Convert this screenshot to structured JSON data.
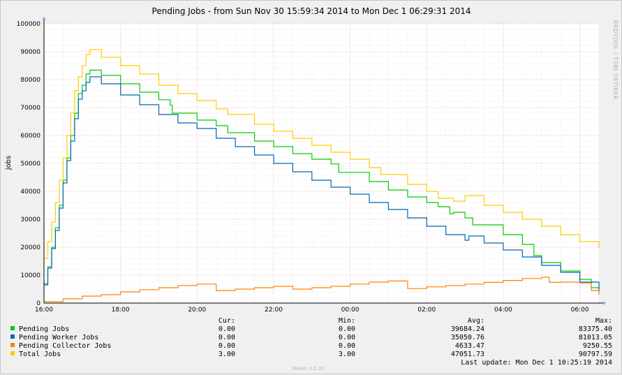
{
  "chart_data": {
    "type": "line",
    "title": "Pending Jobs - from Sun Nov 30 15:59:34 2014 to Mon Dec  1 06:29:31 2014",
    "ylabel": "jobs",
    "side_label": "RRDTOOL / TOBI OETIKER",
    "x_ticks": [
      "16:00",
      "18:00",
      "20:00",
      "22:00",
      "00:00",
      "02:00",
      "04:00",
      "06:00"
    ],
    "y_ticks": [
      "0",
      "10000",
      "20000",
      "30000",
      "40000",
      "50000",
      "60000",
      "70000",
      "80000",
      "90000",
      "100000"
    ],
    "xlim": [
      0,
      14.5
    ],
    "ylim": [
      0,
      100000
    ],
    "grid": true,
    "x_unit_note": "hours after 16:00",
    "series": [
      {
        "name": "Pending Jobs",
        "color": "#00cc00",
        "points": [
          [
            0,
            7000
          ],
          [
            0.1,
            13000
          ],
          [
            0.2,
            20000
          ],
          [
            0.3,
            27000
          ],
          [
            0.4,
            35000
          ],
          [
            0.5,
            44000
          ],
          [
            0.6,
            52000
          ],
          [
            0.7,
            60000
          ],
          [
            0.8,
            68000
          ],
          [
            0.9,
            75000
          ],
          [
            1.0,
            78000
          ],
          [
            1.1,
            82000
          ],
          [
            1.2,
            83400
          ],
          [
            1.5,
            81500
          ],
          [
            2.0,
            78500
          ],
          [
            2.5,
            75500
          ],
          [
            3.0,
            72800
          ],
          [
            3.3,
            70800
          ],
          [
            3.35,
            68000
          ],
          [
            4.0,
            65500
          ],
          [
            4.5,
            63500
          ],
          [
            4.8,
            61000
          ],
          [
            5.5,
            58000
          ],
          [
            6.0,
            56000
          ],
          [
            6.5,
            53500
          ],
          [
            7.0,
            51500
          ],
          [
            7.5,
            49800
          ],
          [
            7.7,
            46800
          ],
          [
            8.5,
            43500
          ],
          [
            9.0,
            40500
          ],
          [
            9.5,
            38000
          ],
          [
            10.0,
            36000
          ],
          [
            10.3,
            34500
          ],
          [
            10.6,
            32000
          ],
          [
            10.7,
            32500
          ],
          [
            11.0,
            30500
          ],
          [
            11.2,
            28000
          ],
          [
            12.0,
            24500
          ],
          [
            12.5,
            21000
          ],
          [
            12.8,
            17000
          ],
          [
            13.0,
            14500
          ],
          [
            13.5,
            11500
          ],
          [
            14.0,
            8500
          ],
          [
            14.3,
            5500
          ],
          [
            14.5,
            4000
          ]
        ]
      },
      {
        "name": "Pending Worker Jobs",
        "color": "#0066b3",
        "points": [
          [
            0,
            6500
          ],
          [
            0.1,
            12500
          ],
          [
            0.2,
            19500
          ],
          [
            0.3,
            26000
          ],
          [
            0.4,
            34000
          ],
          [
            0.5,
            43000
          ],
          [
            0.6,
            51000
          ],
          [
            0.7,
            58000
          ],
          [
            0.8,
            66000
          ],
          [
            0.9,
            73000
          ],
          [
            1.0,
            76000
          ],
          [
            1.1,
            79000
          ],
          [
            1.2,
            81000
          ],
          [
            1.5,
            78500
          ],
          [
            2.0,
            74500
          ],
          [
            2.5,
            71000
          ],
          [
            3.0,
            67500
          ],
          [
            3.5,
            64500
          ],
          [
            4.0,
            62500
          ],
          [
            4.5,
            59000
          ],
          [
            5.0,
            56000
          ],
          [
            5.5,
            53000
          ],
          [
            6.0,
            50000
          ],
          [
            6.5,
            47000
          ],
          [
            7.0,
            44000
          ],
          [
            7.5,
            41500
          ],
          [
            8.0,
            39000
          ],
          [
            8.5,
            36000
          ],
          [
            9.0,
            33500
          ],
          [
            9.5,
            30500
          ],
          [
            10.0,
            27500
          ],
          [
            10.5,
            24500
          ],
          [
            11.0,
            22500
          ],
          [
            11.1,
            24000
          ],
          [
            11.5,
            21500
          ],
          [
            12.0,
            19000
          ],
          [
            12.5,
            16500
          ],
          [
            13.0,
            13500
          ],
          [
            13.5,
            11000
          ],
          [
            14.0,
            7500
          ],
          [
            14.5,
            4000
          ]
        ]
      },
      {
        "name": "Pending Collector Jobs",
        "color": "#ff8000",
        "points": [
          [
            0,
            500
          ],
          [
            0.5,
            1500
          ],
          [
            1.0,
            2500
          ],
          [
            1.5,
            3000
          ],
          [
            2.0,
            4000
          ],
          [
            2.5,
            4800
          ],
          [
            3.0,
            5500
          ],
          [
            3.5,
            6300
          ],
          [
            4.0,
            6800
          ],
          [
            4.5,
            4500
          ],
          [
            5.0,
            5000
          ],
          [
            5.5,
            5500
          ],
          [
            6.0,
            6000
          ],
          [
            6.5,
            5000
          ],
          [
            7.0,
            5500
          ],
          [
            7.5,
            6000
          ],
          [
            8.0,
            6800
          ],
          [
            8.5,
            7500
          ],
          [
            9.0,
            7900
          ],
          [
            9.5,
            5200
          ],
          [
            10.0,
            5800
          ],
          [
            10.5,
            6300
          ],
          [
            11.0,
            6800
          ],
          [
            11.5,
            7400
          ],
          [
            12.0,
            8100
          ],
          [
            12.5,
            8800
          ],
          [
            13.0,
            9250
          ],
          [
            13.2,
            7400
          ],
          [
            13.5,
            7500
          ],
          [
            14.0,
            7200
          ],
          [
            14.3,
            4500
          ],
          [
            14.5,
            3000
          ]
        ]
      },
      {
        "name": "Total Jobs",
        "color": "#ffcc00",
        "points": [
          [
            0,
            16000
          ],
          [
            0.1,
            22000
          ],
          [
            0.2,
            29000
          ],
          [
            0.3,
            36000
          ],
          [
            0.4,
            44000
          ],
          [
            0.5,
            52000
          ],
          [
            0.6,
            60000
          ],
          [
            0.7,
            68000
          ],
          [
            0.8,
            76000
          ],
          [
            0.9,
            81000
          ],
          [
            1.0,
            85000
          ],
          [
            1.1,
            89000
          ],
          [
            1.2,
            90800
          ],
          [
            1.5,
            88000
          ],
          [
            2.0,
            85000
          ],
          [
            2.5,
            82000
          ],
          [
            3.0,
            78000
          ],
          [
            3.5,
            75000
          ],
          [
            4.0,
            72500
          ],
          [
            4.5,
            69500
          ],
          [
            4.8,
            67500
          ],
          [
            5.5,
            64000
          ],
          [
            6.0,
            61500
          ],
          [
            6.5,
            59000
          ],
          [
            7.0,
            56500
          ],
          [
            7.5,
            54000
          ],
          [
            8.0,
            51500
          ],
          [
            8.5,
            48500
          ],
          [
            8.8,
            46000
          ],
          [
            9.5,
            42500
          ],
          [
            10.0,
            40000
          ],
          [
            10.3,
            37500
          ],
          [
            10.7,
            36500
          ],
          [
            11.0,
            38500
          ],
          [
            11.5,
            35000
          ],
          [
            12.0,
            32500
          ],
          [
            12.5,
            30000
          ],
          [
            13.0,
            27500
          ],
          [
            13.5,
            24500
          ],
          [
            14.0,
            22000
          ],
          [
            14.5,
            19500
          ]
        ]
      }
    ]
  },
  "legend": {
    "headers": {
      "cur": "Cur:",
      "min": "Min:",
      "avg": "Avg:",
      "max": "Max:"
    },
    "rows": [
      {
        "name": "Pending Jobs",
        "color": "#00cc00",
        "cur": "0.00",
        "min": "0.00",
        "avg": "39684.24",
        "max": "83375.40"
      },
      {
        "name": "Pending Worker Jobs",
        "color": "#0066b3",
        "cur": "0.00",
        "min": "0.00",
        "avg": "35050.76",
        "max": "81013.05"
      },
      {
        "name": "Pending Collector Jobs",
        "color": "#ff8000",
        "cur": "0.00",
        "min": "0.00",
        "avg": "4633.47",
        "max": "9250.55"
      },
      {
        "name": "Total Jobs",
        "color": "#ffcc00",
        "cur": "3.00",
        "min": "3.00",
        "avg": "47051.73",
        "max": "90797.59"
      }
    ],
    "last_update": "Last update: Mon Dec  1 10:25:19 2014",
    "footer": "Munin 2.0.21"
  }
}
